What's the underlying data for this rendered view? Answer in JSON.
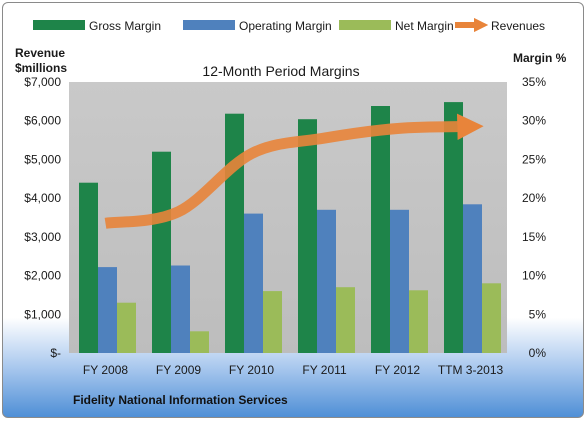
{
  "chart_data": {
    "type": "bar",
    "title": "12-Month Period Margins",
    "subtitle": "Fidelity National Information Services",
    "categories": [
      "FY 2008",
      "FY 2009",
      "FY 2010",
      "FY 2011",
      "FY 2012",
      "TTM 3-2013"
    ],
    "series": [
      {
        "name": "Gross Margin",
        "axis": "right",
        "unit": "%",
        "values": [
          22.0,
          26.0,
          30.9,
          30.2,
          31.9,
          32.4
        ],
        "color": "#1e8449"
      },
      {
        "name": "Operating Margin",
        "axis": "right",
        "unit": "%",
        "values": [
          11.1,
          11.3,
          18.0,
          18.5,
          18.5,
          19.2
        ],
        "color": "#4f81bd"
      },
      {
        "name": "Net Margin",
        "axis": "right",
        "unit": "%",
        "values": [
          6.5,
          2.8,
          8.0,
          8.5,
          8.1,
          9.0
        ],
        "color": "#9bbb59"
      }
    ],
    "line_series": {
      "name": "Revenues",
      "type": "line",
      "axis": "left",
      "unit": "$millions",
      "values": [
        3350,
        3650,
        5150,
        5550,
        5800,
        5850
      ],
      "color": "#e8843a"
    },
    "ylabel_left": "Revenue\n$millions",
    "ylabel_right": "Margin %",
    "ylim_left": [
      0,
      7000
    ],
    "ylim_right": [
      0,
      35
    ],
    "yticks_left": [
      "$7,000",
      "$6,000",
      "$5,000",
      "$4,000",
      "$3,000",
      "$2,000",
      "$1,000",
      "$-"
    ],
    "yticks_right": [
      "35%",
      "30%",
      "25%",
      "20%",
      "15%",
      "10%",
      "5%",
      "0%"
    ],
    "grid": false,
    "legend_placement": "top"
  },
  "colors": {
    "plot_background": "#c6c6c6",
    "gross_margin": "#1e8449",
    "operating_margin": "#4f81bd",
    "net_margin": "#9bbb59",
    "revenues": "#e8843a"
  }
}
